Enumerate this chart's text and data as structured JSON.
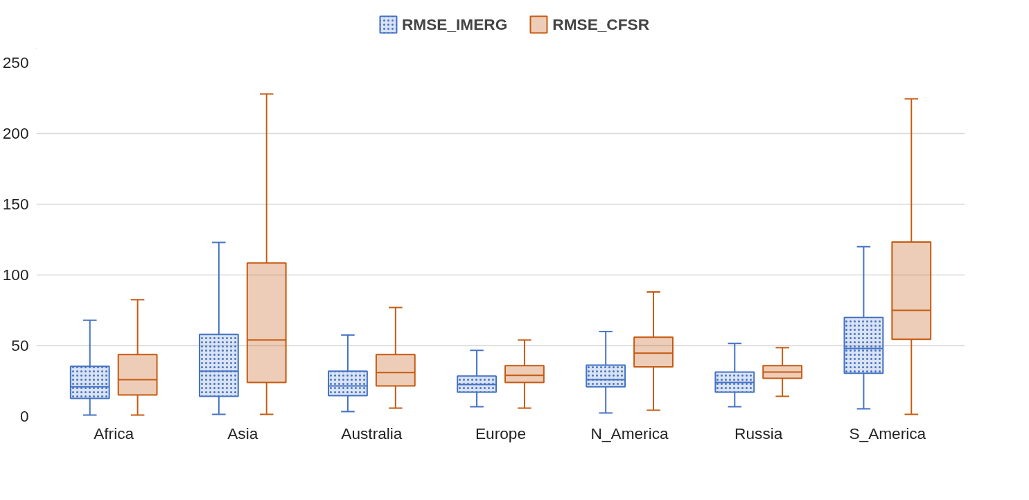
{
  "chart_data": {
    "type": "box",
    "categories": [
      "Africa",
      "Asia",
      "Australia",
      "Europe",
      "N_America",
      "Russia",
      "S_America"
    ],
    "series": [
      {
        "name": "RMSE_IMERG",
        "color": "#4472c4",
        "boxes": [
          {
            "low": 1,
            "q1": 12.8,
            "median": 21,
            "q3": 35.4,
            "high": 68
          },
          {
            "low": 1.5,
            "q1": 14.2,
            "median": 32,
            "q3": 58,
            "high": 123
          },
          {
            "low": 3.4,
            "q1": 14.7,
            "median": 21.6,
            "q3": 32,
            "high": 57.5
          },
          {
            "low": 6.9,
            "q1": 17.2,
            "median": 22.6,
            "q3": 28.5,
            "high": 46.7
          },
          {
            "low": 2.5,
            "q1": 21,
            "median": 26,
            "q3": 36.3,
            "high": 60
          },
          {
            "low": 6.9,
            "q1": 17.2,
            "median": 24,
            "q3": 31.4,
            "high": 51.6
          },
          {
            "low": 5.4,
            "q1": 30.5,
            "median": 48,
            "q3": 70,
            "high": 120
          }
        ]
      },
      {
        "name": "RMSE_CFSR",
        "color": "#c55a11",
        "boxes": [
          {
            "low": 1,
            "q1": 15.2,
            "median": 26,
            "q3": 43.7,
            "high": 82.5
          },
          {
            "low": 1.5,
            "q1": 24,
            "median": 54,
            "q3": 108.5,
            "high": 228
          },
          {
            "low": 5.9,
            "q1": 21.6,
            "median": 31,
            "q3": 43.7,
            "high": 77
          },
          {
            "low": 5.9,
            "q1": 24,
            "median": 29,
            "q3": 35.9,
            "high": 54
          },
          {
            "low": 4.4,
            "q1": 35,
            "median": 44.7,
            "q3": 56,
            "high": 88
          },
          {
            "low": 14.2,
            "q1": 27,
            "median": 31.4,
            "q3": 35.9,
            "high": 48.6
          },
          {
            "low": 1.5,
            "q1": 54.5,
            "median": 75,
            "q3": 123.3,
            "high": 224.5
          }
        ]
      }
    ],
    "ylim": [
      0,
      250
    ],
    "yticks": [
      0,
      50,
      100,
      150,
      200,
      250
    ],
    "grid": "y",
    "legend": "top"
  }
}
